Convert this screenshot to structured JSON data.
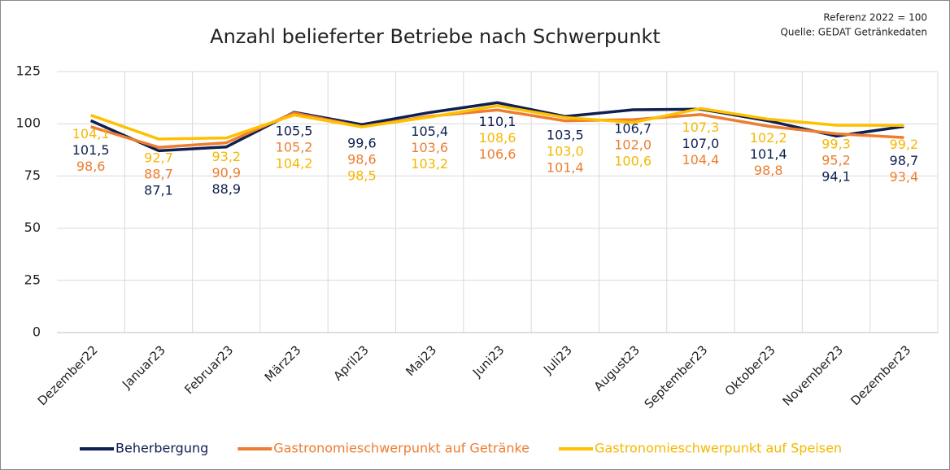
{
  "chart_data": {
    "type": "line",
    "title": "Anzahl belieferter Betriebe nach Schwerpunkt",
    "annotations": [
      "Referenz 2022 = 100",
      "Quelle: GEDAT Getränkedaten"
    ],
    "categories": [
      "Dezember22",
      "Januar23",
      "Februar23",
      "März23",
      "April23",
      "Mai23",
      "Juni23",
      "Juli23",
      "August23",
      "September23",
      "Oktober23",
      "November23",
      "Dezember23"
    ],
    "series": [
      {
        "name": "Beherbergung",
        "color": "#0e1f50",
        "values": [
          101.5,
          87.1,
          88.9,
          105.5,
          99.6,
          105.4,
          110.1,
          103.5,
          106.7,
          107.0,
          101.4,
          94.1,
          98.7
        ],
        "value_labels": [
          "101,5",
          "87,1",
          "88,9",
          "105,5",
          "99,6",
          "105,4",
          "110,1",
          "103,5",
          "106,7",
          "107,0",
          "101,4",
          "94,1",
          "98,7"
        ]
      },
      {
        "name": "Gastronomieschwerpunkt auf Getränke",
        "color": "#ed7d31",
        "values": [
          98.6,
          88.7,
          90.9,
          105.2,
          98.6,
          103.6,
          106.6,
          101.4,
          102.0,
          104.4,
          98.8,
          95.2,
          93.4
        ],
        "value_labels": [
          "98,6",
          "88,7",
          "90,9",
          "105,2",
          "98,6",
          "103,6",
          "106,6",
          "101,4",
          "102,0",
          "104,4",
          "98,8",
          "95,2",
          "93,4"
        ]
      },
      {
        "name": "Gastronomieschwerpunkt auf Speisen",
        "color": "#ffc000",
        "values": [
          104.1,
          92.7,
          93.2,
          104.2,
          98.5,
          103.2,
          108.6,
          103.0,
          100.6,
          107.3,
          102.2,
          99.3,
          99.2
        ],
        "value_labels": [
          "104,1",
          "92,7",
          "93,2",
          "104,2",
          "98,5",
          "103,2",
          "108,6",
          "103,0",
          "100,6",
          "107,3",
          "102,2",
          "99,3",
          "99,2"
        ]
      }
    ],
    "ylim": [
      0,
      125
    ],
    "yticks": [
      0,
      25,
      50,
      75,
      100,
      125
    ],
    "grid": true,
    "legend": "bottom"
  }
}
